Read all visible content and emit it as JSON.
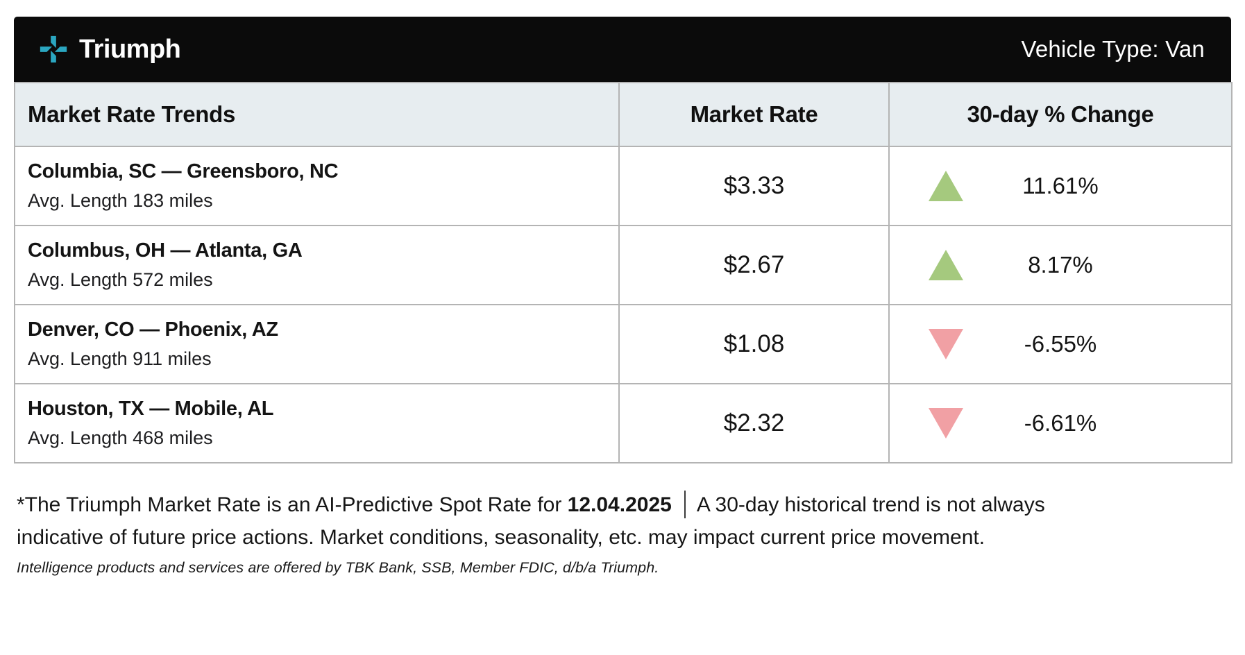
{
  "header": {
    "brand": "Triumph",
    "vehicle_type": "Vehicle Type: Van"
  },
  "table": {
    "columns": [
      "Market Rate Trends",
      "Market Rate",
      "30-day % Change"
    ],
    "rows": [
      {
        "lane": "Columbia, SC — Greensboro, NC",
        "avg_length": "Avg. Length 183 miles",
        "rate": "$3.33",
        "change": "11.61%",
        "direction": "up"
      },
      {
        "lane": "Columbus, OH — Atlanta, GA",
        "avg_length": "Avg. Length 572 miles",
        "rate": "$2.67",
        "change": "8.17%",
        "direction": "up"
      },
      {
        "lane": "Denver, CO — Phoenix, AZ",
        "avg_length": "Avg. Length 911 miles",
        "rate": "$1.08",
        "change": "-6.55%",
        "direction": "down"
      },
      {
        "lane": "Houston, TX — Mobile, AL",
        "avg_length": "Avg. Length 468 miles",
        "rate": "$2.32",
        "change": "-6.61%",
        "direction": "down"
      }
    ]
  },
  "footnote": {
    "line1_prefix": "*The Triumph Market Rate is an AI-Predictive Spot Rate for ",
    "date": "12.04.2025",
    "line1_suffix": "A 30-day historical trend is not always",
    "line2": "indicative of future price actions. Market conditions, seasonality, etc. may impact current price movement.",
    "fine_print": "Intelligence products and services are offered by TBK Bank, SSB, Member FDIC, d/b/a Triumph."
  },
  "colors": {
    "accent": "#2BA6C0",
    "up": "#A5C97E",
    "down": "#F1A0A4",
    "bar_bg": "#0B0B0B",
    "header_bg": "#E7EDF0",
    "border": "#B4B4B4"
  }
}
